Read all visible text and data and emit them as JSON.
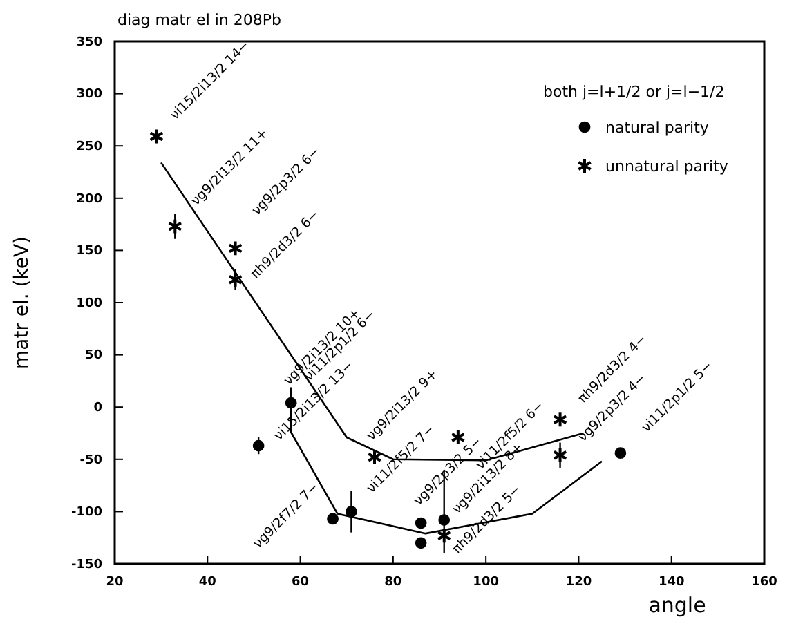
{
  "chart_data": {
    "type": "scatter",
    "title": "diag matr el in 208Pb",
    "xlabel": "angle",
    "ylabel": "matr el. (keV)",
    "legend_title": "both j=l+1/2 or j=l−1/2",
    "legend": "top right",
    "xlim": [
      20,
      160
    ],
    "xticks": [
      20,
      40,
      60,
      80,
      100,
      120,
      140,
      160
    ],
    "ylim": [
      -150,
      350
    ],
    "yticks": [
      -150,
      -100,
      -50,
      0,
      50,
      100,
      150,
      200,
      250,
      300,
      350
    ],
    "grid": false,
    "series": [
      {
        "type": "line",
        "color": "#000000",
        "marker": "none",
        "line_style": "solid",
        "x": [
          30,
          70,
          80,
          100,
          121
        ],
        "values": [
          234,
          -29,
          -50,
          -51,
          -25
        ]
      },
      {
        "type": "line",
        "color": "#000000",
        "marker": "none",
        "line_style": "solid",
        "x": [
          58,
          58,
          68,
          87,
          110,
          125
        ],
        "values": [
          10,
          -24,
          -102,
          -121,
          -102,
          -52
        ]
      },
      {
        "name": "natural parity",
        "color": "#000000",
        "marker": "circle",
        "x": [
          51,
          58,
          67,
          71,
          86,
          86,
          91,
          129
        ],
        "values": [
          -37,
          4,
          -107,
          -100,
          -111,
          -130,
          -108,
          -44
        ],
        "errors": [
          8,
          15,
          null,
          20,
          null,
          null,
          null,
          null
        ]
      },
      {
        "name": "unnatural parity",
        "color": "#000000",
        "marker": "cross",
        "x": [
          29,
          33,
          46,
          46,
          76,
          94,
          116,
          116,
          91
        ],
        "values": [
          259,
          173,
          152,
          122,
          -48,
          -29,
          -12,
          -46,
          -123
        ],
        "errors": [
          null,
          12,
          null,
          10,
          null,
          null,
          null,
          12,
          [
            -140,
            -60
          ]
        ]
      }
    ],
    "annotations": [
      "νi15/2i13/2 14−",
      "νg9/2i13/2 11+",
      "νg9/2p3/2 6−",
      "πh9/2d3/2 6−",
      "νg9/2i13/2 10+",
      "νi11/2p1/2 6−",
      "νi15/2i13/2 13−",
      "νg9/2i13/2 9+",
      "νi11/2f5/2 7−",
      "νi11/2f5/2 6−",
      "νg9/2p3/2 5−",
      "νg9/2i13/2 8+",
      "πh9/2d3/2 5−",
      "νg9/2f7/2 7−",
      "πh9/2d3/2 4−",
      "νg9/2p3/2 4−",
      "νi11/2p1/2 5−"
    ]
  }
}
